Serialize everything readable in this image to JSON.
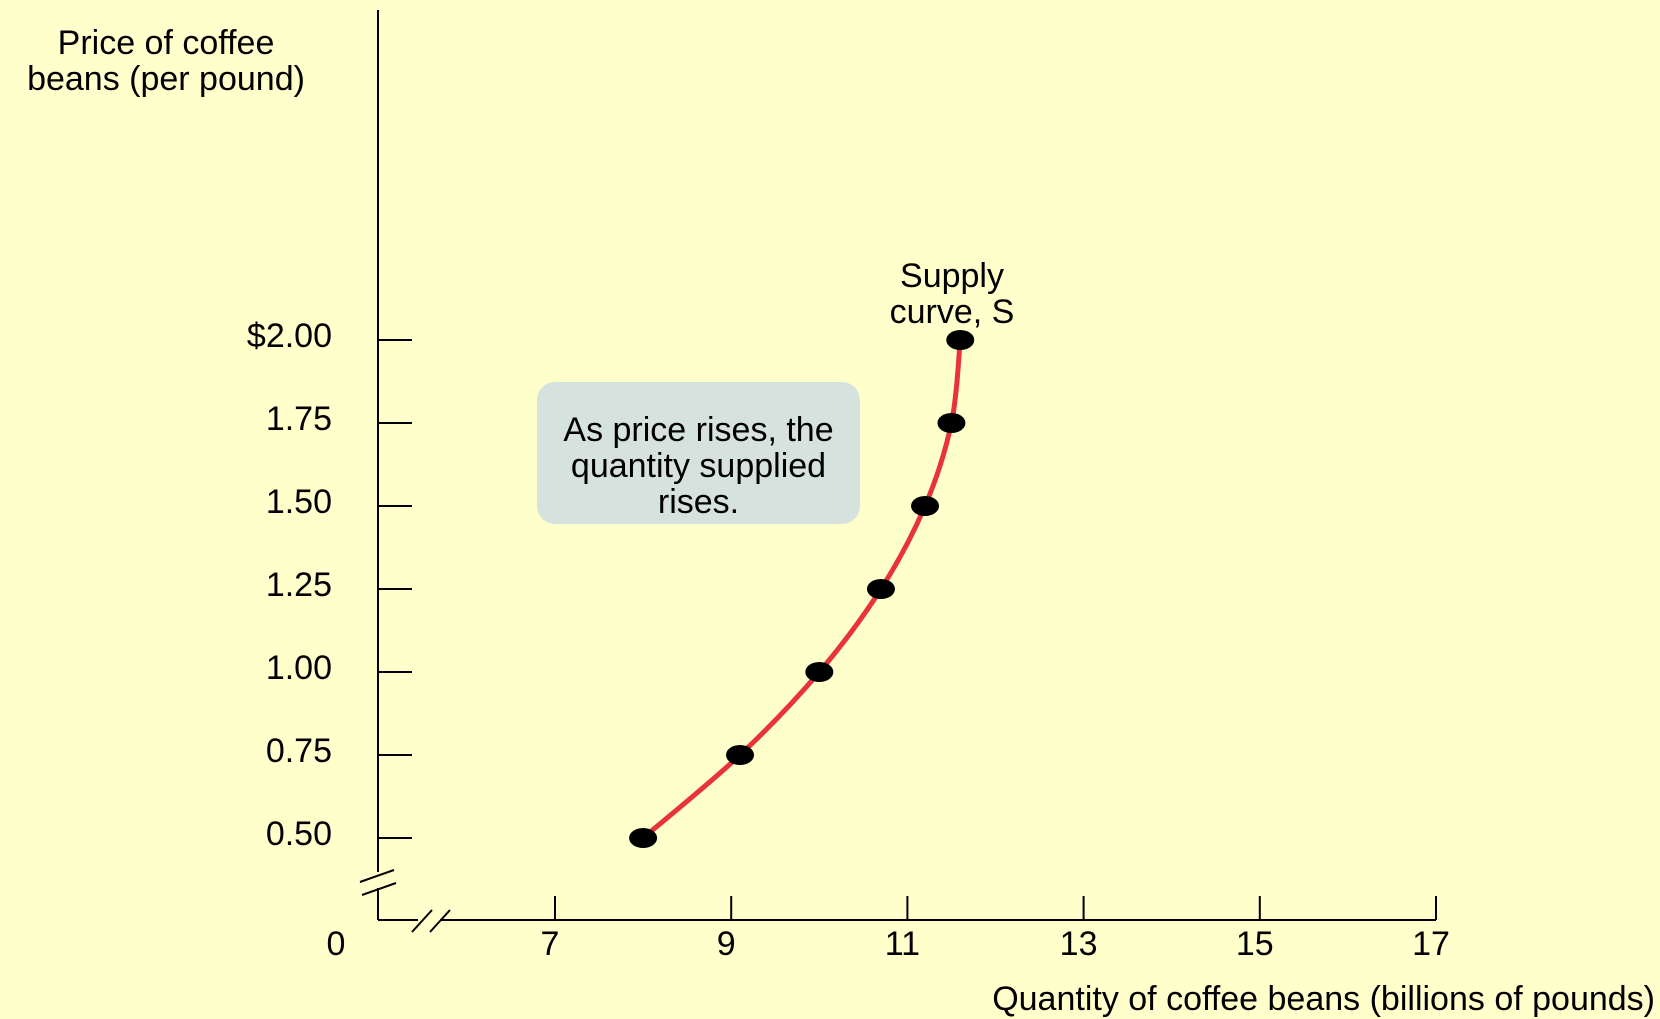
{
  "chart_data": {
    "type": "line",
    "ylabel": "Price of coffee\nbeans (per pound)",
    "xlabel": "Quantity of coffee beans (billions of pounds)",
    "origin_label": "0",
    "xticks": [
      7,
      9,
      11,
      13,
      15,
      17
    ],
    "xtick_labels": [
      "7",
      "9",
      "11",
      "13",
      "15",
      "17"
    ],
    "yticks": [
      0.5,
      0.75,
      1.0,
      1.25,
      1.5,
      1.75,
      2.0
    ],
    "ytick_labels": [
      "0.50",
      "0.75",
      "1.00",
      "1.25",
      "1.50",
      "1.75",
      "$2.00"
    ],
    "xlim": [
      7,
      17
    ],
    "ylim": [
      0.5,
      2.0
    ],
    "axis_breaks": true,
    "grid": false,
    "series": [
      {
        "name": "Supply curve, S",
        "color": "#e8323c",
        "marker_color": "#000000",
        "x": [
          8.0,
          9.1,
          10.0,
          10.7,
          11.2,
          11.5,
          11.6
        ],
        "y": [
          0.5,
          0.75,
          1.0,
          1.25,
          1.5,
          1.75,
          2.0
        ]
      }
    ],
    "curve_label": "Supply\ncurve, S",
    "annotation": "As price rises, the\nquantity supplied\nrises.",
    "annotation_bg": "#d6e2de",
    "background": "#ffffcc"
  }
}
